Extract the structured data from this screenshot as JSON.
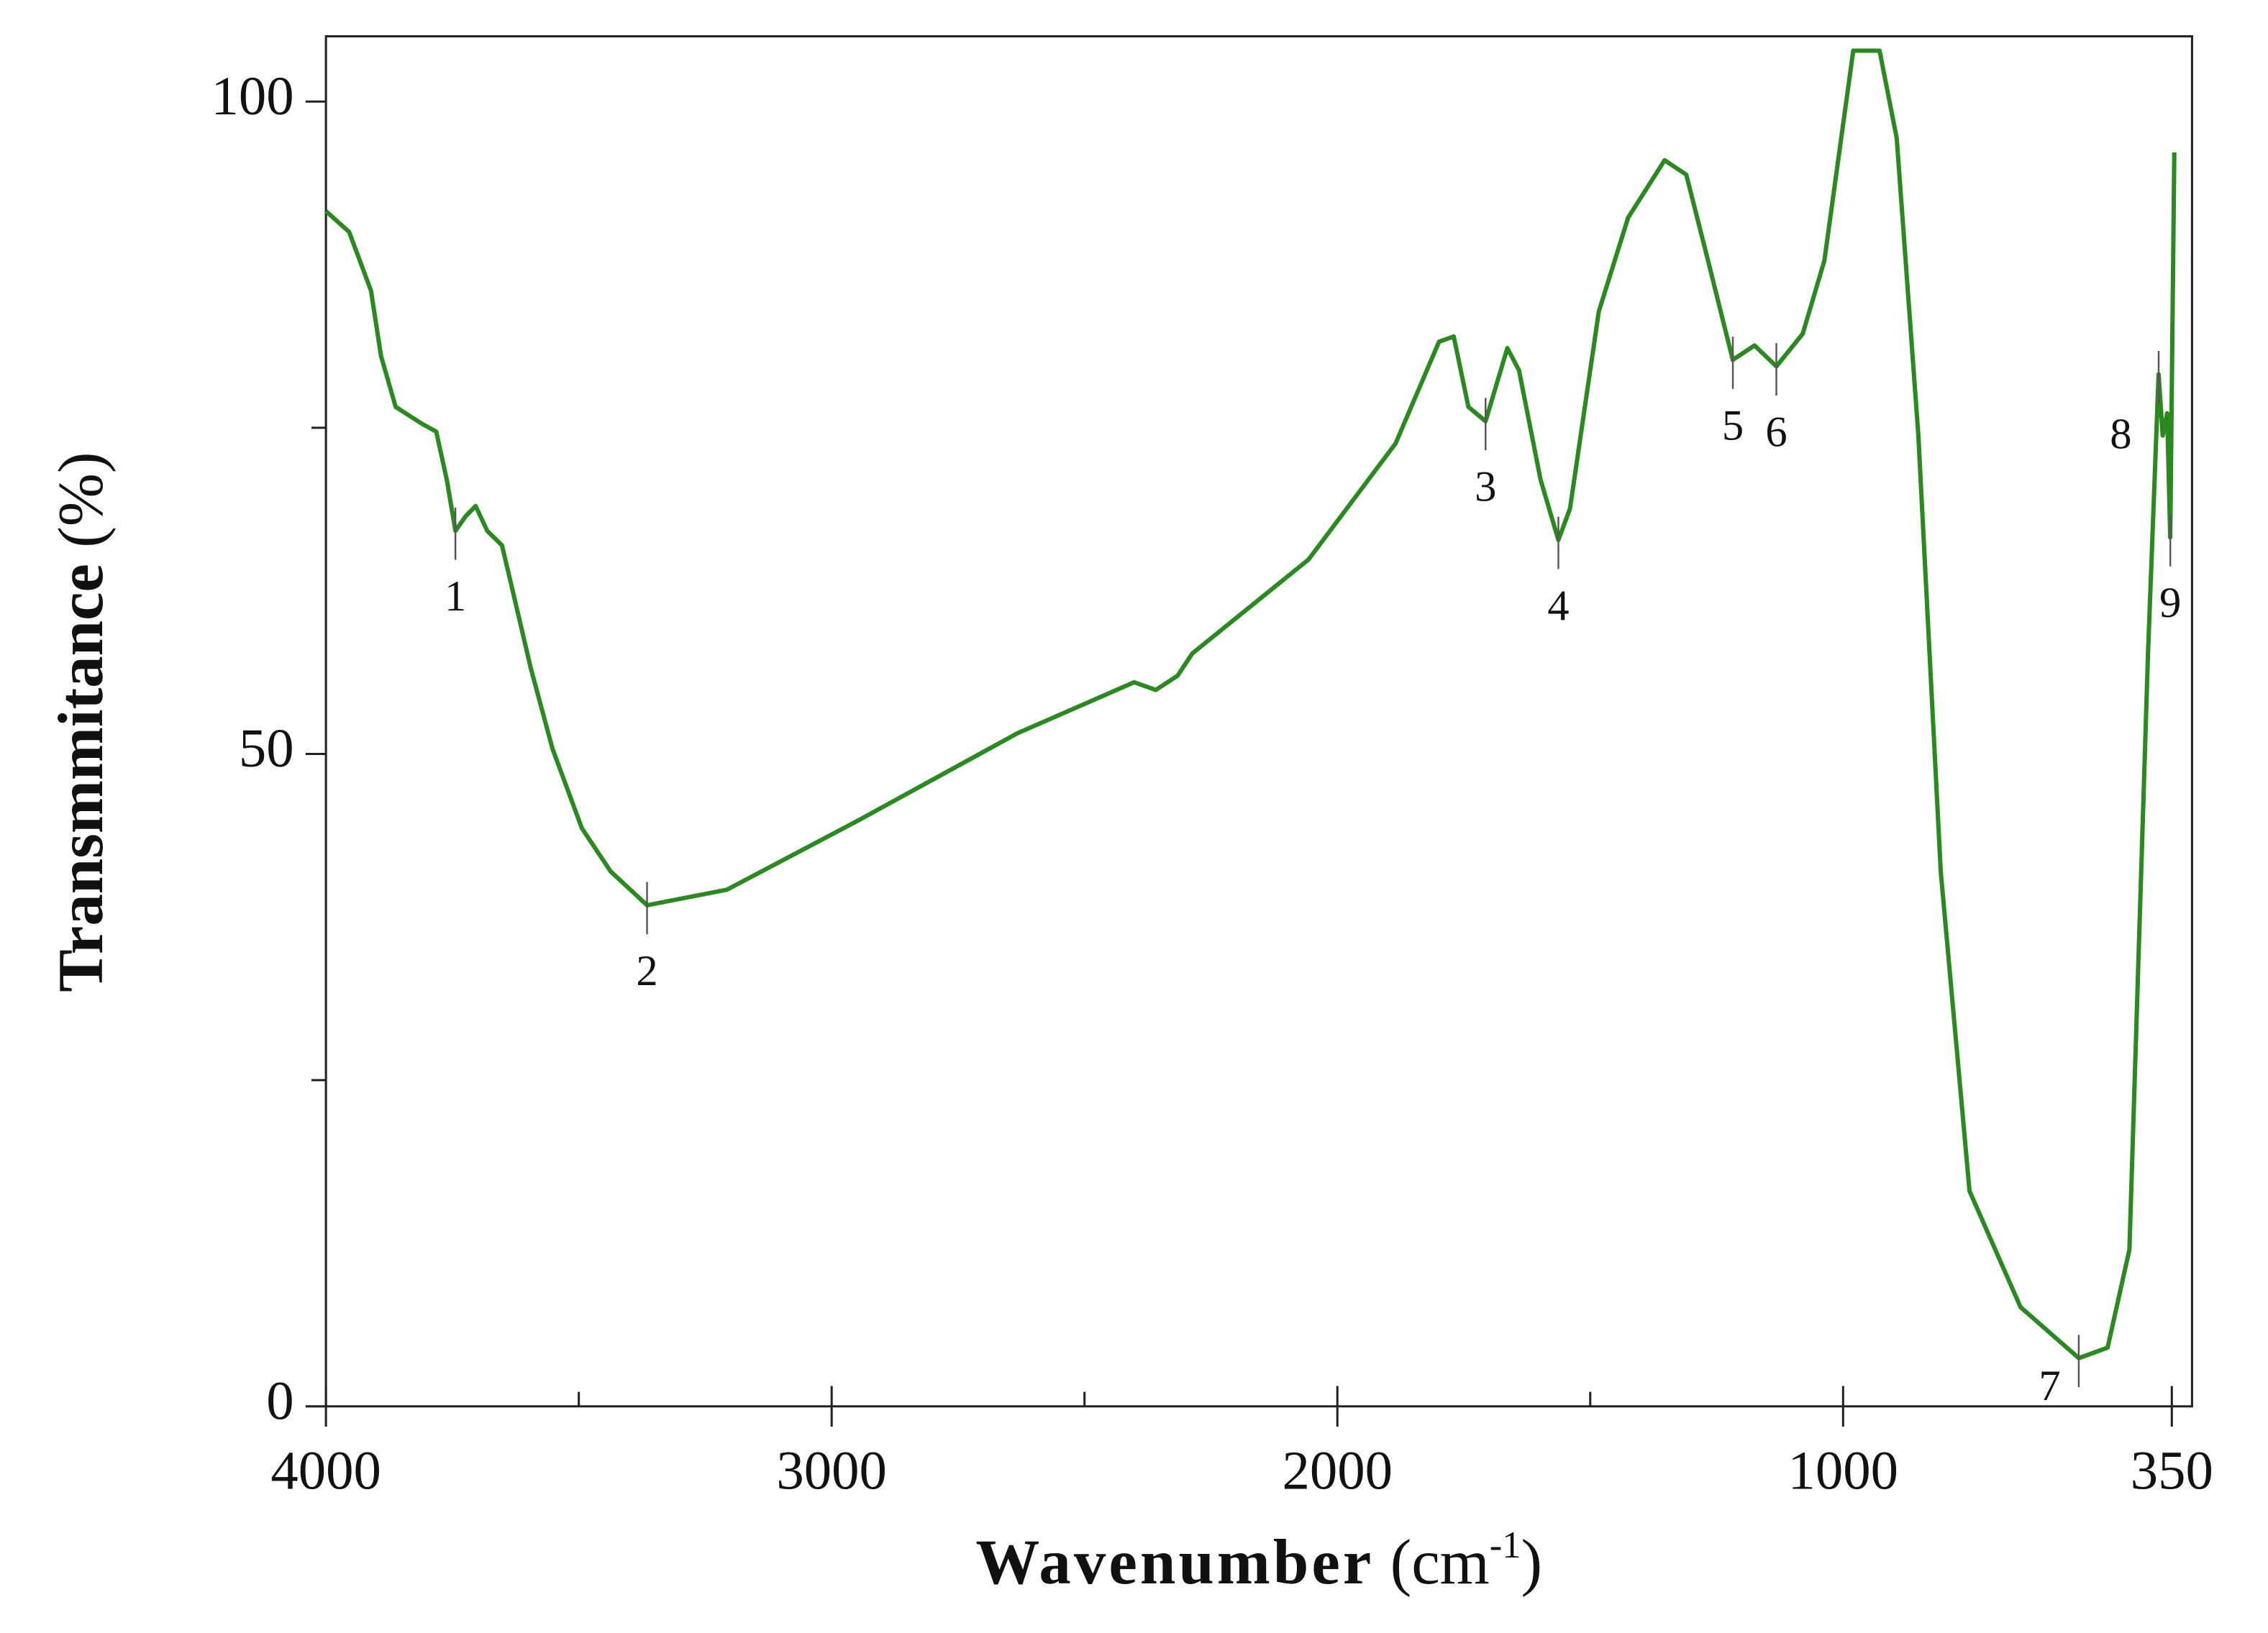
{
  "chart_data": {
    "type": "line",
    "xlabel": [
      "Wavenumber",
      "(cm",
      "-1",
      ")"
    ],
    "ylabel": [
      "Transmmitance",
      "(%)"
    ],
    "xlim": [
      4000,
      310
    ],
    "ylim": [
      0,
      105
    ],
    "xticks": [
      4000,
      3000,
      2000,
      1000,
      350
    ],
    "xminorticks": [
      3500,
      2500,
      1500
    ],
    "yticks": [
      0,
      50,
      100
    ],
    "yminorticks": [
      25,
      75
    ],
    "grid": false,
    "series": [
      {
        "color": "#2a8a1f",
        "x": [
          4000,
          3954,
          3911,
          3891,
          3862,
          3810,
          3782,
          3761,
          3744,
          3724,
          3704,
          3681,
          3652,
          3632,
          3595,
          3552,
          3494,
          3437,
          3365,
          3207,
          2948,
          2632,
          2402,
          2359,
          2316,
          2287,
          2057,
          1885,
          1799,
          1770,
          1741,
          1707,
          1664,
          1641,
          1598,
          1563,
          1540,
          1483,
          1425,
          1353,
          1310,
          1267,
          1218,
          1175,
          1132,
          1080,
          1037,
          980,
          928,
          894,
          851,
          807,
          750,
          649,
          534,
          477,
          434,
          397,
          376,
          368,
          359,
          353,
          345
        ],
        "values": [
          91.6,
          90.0,
          85.5,
          80.5,
          76.6,
          75.3,
          74.7,
          71.0,
          67.1,
          68.2,
          69.0,
          67.1,
          66.0,
          62.7,
          56.6,
          50.4,
          44.3,
          41.0,
          38.4,
          39.6,
          44.9,
          51.6,
          55.5,
          54.9,
          56.0,
          57.7,
          64.9,
          73.8,
          81.6,
          82.0,
          76.6,
          75.5,
          81.1,
          79.4,
          71.0,
          66.4,
          68.8,
          83.9,
          91.1,
          95.5,
          94.4,
          87.8,
          80.2,
          81.3,
          79.7,
          82.2,
          87.8,
          103.9,
          103.9,
          97.2,
          74.4,
          41.0,
          16.5,
          7.6,
          3.7,
          4.5,
          12.0,
          57.7,
          79.1,
          74.4,
          76.1,
          66.6,
          96.1
        ]
      }
    ],
    "peaks": [
      {
        "label": "1",
        "x": 3744,
        "y": 67.1
      },
      {
        "label": "2",
        "x": 3365,
        "y": 38.4
      },
      {
        "label": "3",
        "x": 1707,
        "y": 75.5
      },
      {
        "label": "4",
        "x": 1563,
        "y": 66.4
      },
      {
        "label": "5",
        "x": 1218,
        "y": 80.2
      },
      {
        "label": "6",
        "x": 1132,
        "y": 79.7
      },
      {
        "label": "7",
        "x": 534,
        "y": 3.7
      },
      {
        "label": "8",
        "x": 376,
        "y": 79.1
      },
      {
        "label": "9",
        "x": 353,
        "y": 66.6
      }
    ]
  }
}
